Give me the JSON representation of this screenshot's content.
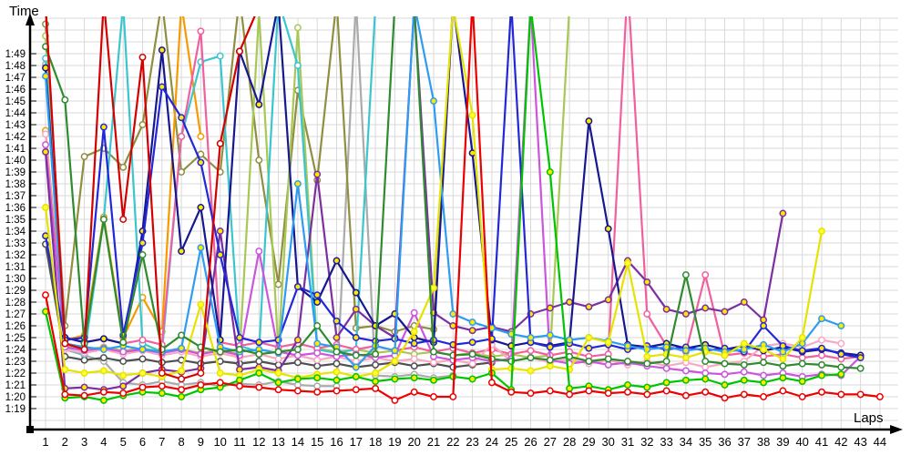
{
  "chart_data": {
    "type": "line",
    "title": "",
    "xlabel": "Laps",
    "ylabel": "Time",
    "x_ticks": [
      1,
      2,
      3,
      4,
      5,
      6,
      7,
      8,
      9,
      10,
      11,
      12,
      13,
      14,
      15,
      16,
      17,
      18,
      19,
      20,
      21,
      22,
      23,
      24,
      25,
      26,
      27,
      28,
      29,
      30,
      31,
      32,
      33,
      34,
      35,
      36,
      37,
      38,
      39,
      40,
      41,
      42,
      43,
      44
    ],
    "y_ticks": [
      "1:19",
      "1:20",
      "1:21",
      "1:22",
      "1:23",
      "1:24",
      "1:25",
      "1:26",
      "1:27",
      "1:28",
      "1:29",
      "1:30",
      "1:31",
      "1:32",
      "1:33",
      "1:34",
      "1:35",
      "1:36",
      "1:37",
      "1:38",
      "1:39",
      "1:40",
      "1:41",
      "1:42",
      "1:43",
      "1:44",
      "1:45",
      "1:46",
      "1:47",
      "1:48",
      "1:49"
    ],
    "grid": true,
    "legend": "none",
    "value_unit": "lap time in seconds (79.0 = 1:19.0); values above 112 run off the top of the plot (pit stop / retirement)",
    "ylim_seconds": [
      79,
      112
    ],
    "series": [
      {
        "name": "gray",
        "color": "#ababab",
        "marker_fill": "#ffffff",
        "values": [
          108.1,
          84.0,
          83.5,
          83.0,
          81.2,
          81.0,
          81.3,
          81.0,
          81.2,
          80.9,
          81.1,
          81.0,
          81.3,
          81.0,
          80.9,
          80.9,
          113.5,
          81.8,
          81.7,
          81.9,
          81.6,
          81.8
        ]
      },
      {
        "name": "darkgray",
        "color": "#4f4f4f",
        "marker_fill": "#ffffff",
        "values": [
          92.9,
          83.4,
          83.1,
          83.3,
          83.0,
          83.2,
          82.9,
          83.1,
          82.8,
          83.0,
          82.8,
          83.0,
          82.7,
          82.9,
          82.6,
          82.8,
          82.5,
          82.7,
          82.9,
          82.6,
          82.8,
          82.5,
          82.7,
          82.9
        ]
      },
      {
        "name": "khaki",
        "color": "#8f8f3f",
        "marker_fill": "#ffffff",
        "values": [
          111.5,
          86.0,
          100.3,
          101.0,
          99.4,
          103.0,
          113.5,
          99.0,
          100.5,
          99.0,
          113.8,
          100.0,
          89.5,
          105.9,
          98.3,
          113.5,
          85.8,
          86.0,
          85.5,
          86.0,
          85.7,
          113.0
        ]
      },
      {
        "name": "yellowgreen",
        "color": "#a8c855",
        "marker_fill": "#ffffff",
        "values": [
          110.5,
          84.3,
          84.0,
          84.2,
          83.9,
          84.1,
          83.8,
          84.0,
          83.7,
          84.0,
          83.6,
          112.5,
          83.9,
          111.2,
          84.1,
          83.8,
          84.0,
          83.7,
          83.9,
          83.6,
          83.8,
          83.5,
          83.7,
          83.4,
          83.6,
          83.3,
          83.5,
          113.0
        ]
      },
      {
        "name": "orange",
        "color": "#f59b00",
        "marker_fill": "#ffffff",
        "values": [
          102.5,
          84.8,
          85.2,
          95.2,
          85.0,
          88.4,
          85.5,
          113.2,
          102.0
        ]
      },
      {
        "name": "cyan",
        "color": "#3bc6ce",
        "marker_fill": "#ffffff",
        "values": [
          108.6,
          84.0,
          83.6,
          95.0,
          113.2,
          84.5,
          83.8,
          102.0,
          108.3,
          108.8,
          84.3,
          83.8,
          113.5,
          108.0,
          84.0,
          83.7,
          84.0,
          113.0,
          113.4
        ]
      },
      {
        "name": "hotpink",
        "color": "#f0609e",
        "marker_fill": "#ffffff",
        "values": [
          112.8,
          85.0,
          84.6,
          84.9,
          84.5,
          84.8,
          84.4,
          102.0,
          110.9,
          84.6,
          84.3,
          84.6,
          84.2,
          84.5,
          84.1,
          84.4,
          84.0,
          84.3,
          83.9,
          84.2,
          83.8,
          84.1,
          83.7,
          84.0,
          83.6,
          83.9,
          83.5,
          83.8,
          83.4,
          83.6,
          115.0,
          87.0,
          84.3,
          83.8,
          90.3,
          83.5,
          83.7,
          83.4,
          83.6,
          83.3,
          83.5,
          83.2,
          83.4
        ]
      },
      {
        "name": "lightpink",
        "color": "#f8a8c0",
        "marker_fill": "#ffffff",
        "values": [
          102.2,
          84.0,
          83.7,
          84.0,
          83.6,
          83.9,
          83.5,
          83.8,
          83.4,
          83.7,
          83.3,
          83.6,
          83.2,
          83.5,
          83.1,
          83.4,
          83.0,
          83.3,
          83.0,
          83.2,
          82.9,
          83.1,
          82.8,
          84.4,
          83.0,
          83.3,
          82.9,
          83.2,
          82.8,
          83.1,
          82.7,
          83.0,
          82.6,
          82.9,
          82.5,
          82.8,
          83.0,
          84.3,
          84.5,
          84.2,
          84.8,
          84.5
        ]
      },
      {
        "name": "orchid",
        "color": "#cc55dd",
        "marker_fill": "#ffffff",
        "values": [
          101.3,
          84.2,
          83.9,
          84.1,
          83.8,
          84.0,
          83.7,
          84.0,
          83.6,
          83.9,
          83.5,
          92.3,
          83.8,
          83.5,
          83.7,
          83.4,
          83.6,
          83.3,
          83.5,
          87.1,
          83.4,
          83.1,
          83.3,
          83.0,
          83.2,
          113.2,
          83.1,
          82.8,
          83.0,
          82.7,
          82.9,
          82.6,
          82.4,
          82.2,
          82.0,
          81.9,
          82.1,
          81.8,
          82.0,
          81.7,
          81.9,
          81.8,
          83.4
        ]
      },
      {
        "name": "purple",
        "color": "#7b2fa0",
        "marker_fill": "#ffe800",
        "values": [
          100.7,
          80.7,
          80.8,
          80.6,
          80.9,
          82.0,
          82.3,
          82.1,
          82.4,
          94.0,
          82.3,
          82.5,
          82.2,
          84.8,
          98.8,
          85.0,
          87.4,
          86.0,
          85.0,
          113.0,
          87.1,
          86.0,
          85.6,
          85.9,
          85.5,
          87.0,
          87.5,
          88.0,
          87.6,
          88.2,
          91.5,
          89.7,
          87.4,
          87.0,
          87.5,
          87.2,
          88.0,
          86.5,
          95.5
        ]
      },
      {
        "name": "navy",
        "color": "#17178f",
        "marker_fill": "#ffe800",
        "values": [
          107.8,
          85.0,
          84.6,
          84.9,
          84.5,
          94.0,
          109.3,
          92.3,
          96.0,
          84.8,
          109.2,
          104.7,
          113.3,
          89.3,
          88.0,
          91.5,
          88.8,
          86.0,
          87.0,
          85.0,
          84.6,
          113.3,
          100.6,
          84.8,
          84.3,
          84.6,
          84.3,
          84.6,
          103.3,
          94.2,
          84.4,
          84.2,
          84.5,
          84.1,
          84.4,
          84.0,
          84.3,
          83.9,
          84.2,
          83.8,
          84.0,
          83.7,
          83.5
        ]
      },
      {
        "name": "blue",
        "color": "#2328d6",
        "marker_fill": "#ffe800",
        "values": [
          93.6,
          84.8,
          85.0,
          102.8,
          85.2,
          93.0,
          106.2,
          103.6,
          99.8,
          92.0,
          85.0,
          84.6,
          84.8,
          89.3,
          88.6,
          86.4,
          85.0,
          84.7,
          84.9,
          84.5,
          84.8,
          84.4,
          84.6,
          84.9,
          113.2,
          84.6,
          84.2,
          84.5,
          84.1,
          84.4,
          84.0,
          84.3,
          84.0,
          84.2,
          83.9,
          84.1,
          83.8,
          86.0,
          84.3,
          83.9,
          84.1,
          83.6,
          83.3
        ]
      },
      {
        "name": "dodgerblue",
        "color": "#2d9cf2",
        "marker_fill": "#ffe800",
        "values": [
          107.1,
          84.5,
          84.2,
          84.0,
          84.3,
          84.0,
          83.8,
          84.1,
          92.6,
          84.2,
          83.8,
          84.0,
          83.7,
          98.0,
          84.5,
          84.2,
          82.5,
          84.3,
          83.9,
          113.2,
          105.0,
          87.0,
          86.3,
          85.8,
          85.3,
          85.0,
          85.2,
          84.8,
          85.0,
          84.7,
          84.3,
          84.0,
          84.2,
          83.9,
          84.1,
          83.8,
          84.0,
          84.4,
          83.8,
          84.5,
          86.6,
          86.0
        ]
      },
      {
        "name": "yellow",
        "color": "#e6e300",
        "marker_fill": "#ffff30",
        "values": [
          96.0,
          82.3,
          82.0,
          82.2,
          81.8,
          82.0,
          81.7,
          82.2,
          87.8,
          82.0,
          81.8,
          82.3,
          82.0,
          81.6,
          81.9,
          82.1,
          81.7,
          82.0,
          83.0,
          85.5,
          89.2,
          113.0,
          103.8,
          82.3,
          82.4,
          82.2,
          82.6,
          82.3,
          85.0,
          84.6,
          91.3,
          83.4,
          83.6,
          83.3,
          83.8,
          83.5,
          84.5,
          84.0,
          83.2,
          85.0,
          94.0
        ]
      },
      {
        "name": "forestgreen",
        "color": "#2e8b2e",
        "marker_fill": "#ffffff",
        "values": [
          109.6,
          105.1,
          84.5,
          95.0,
          84.6,
          92.0,
          84.0,
          85.2,
          84.2,
          83.8,
          84.0,
          83.6,
          83.8,
          84.0,
          86.0,
          83.8,
          83.5,
          83.6,
          113.2,
          113.0,
          83.8,
          83.5,
          83.6,
          83.2,
          83.0,
          83.3,
          83.1,
          83.4,
          83.0,
          83.2,
          83.0,
          82.8,
          83.0,
          90.3,
          83.0,
          82.8,
          82.7,
          82.9,
          82.6,
          82.8,
          82.7,
          82.5,
          82.4
        ]
      },
      {
        "name": "lime",
        "color": "#00c400",
        "marker_fill": "#ffe800",
        "values": [
          87.2,
          79.9,
          80.0,
          79.7,
          80.1,
          80.4,
          80.3,
          80.0,
          80.6,
          80.8,
          81.4,
          82.0,
          81.2,
          81.5,
          81.6,
          81.4,
          81.7,
          81.3,
          81.5,
          81.6,
          81.4,
          81.7,
          81.5,
          82.0,
          80.6,
          113.0,
          99.0,
          80.7,
          80.9,
          80.6,
          81.0,
          80.8,
          81.2,
          81.4,
          81.5,
          81.0,
          81.4,
          81.2,
          81.6,
          81.3,
          81.8,
          81.9
        ]
      },
      {
        "name": "red2",
        "color": "#d40000",
        "marker_fill": "#ffffff",
        "values": [
          113.2,
          84.5,
          84.0,
          113.5,
          95.0,
          108.7,
          82.0,
          81.5,
          82.0,
          101.4,
          109.2,
          113.0
        ]
      },
      {
        "name": "red",
        "color": "#ec0000",
        "marker_fill": "#ffffff",
        "values": [
          88.6,
          80.2,
          80.1,
          80.4,
          80.3,
          80.8,
          80.9,
          80.6,
          81.0,
          81.2,
          80.9,
          80.8,
          80.6,
          80.5,
          80.4,
          80.5,
          80.6,
          80.7,
          79.7,
          80.4,
          80.0,
          80.0,
          113.5,
          81.2,
          80.4,
          80.3,
          80.5,
          80.2,
          80.5,
          80.3,
          80.4,
          80.2,
          80.5,
          80.1,
          80.4,
          79.9,
          80.2,
          80.0,
          80.5,
          80.0,
          80.4,
          80.2,
          80.2,
          80.0
        ]
      }
    ]
  }
}
